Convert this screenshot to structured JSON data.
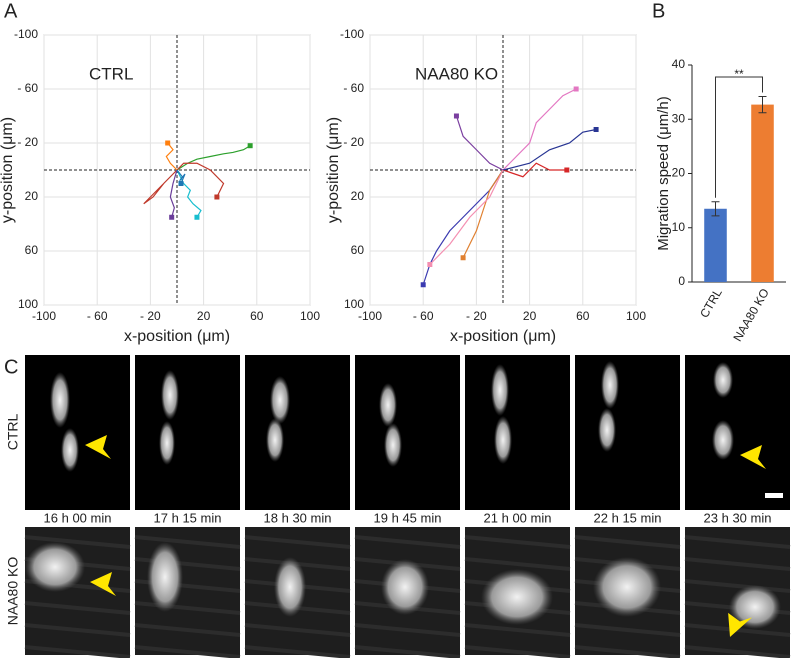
{
  "panel_labels": [
    "A",
    "B",
    "C"
  ],
  "chart_data": [
    {
      "type": "line",
      "annotation": "CTRL",
      "xlabel": "x-position (μm)",
      "ylabel": "y-position (μm)",
      "xlim": [
        -100,
        100
      ],
      "ylim": [
        -100,
        100
      ],
      "y_inverted": true,
      "grid": true,
      "crosshair": [
        0,
        0
      ],
      "xticks": [
        -100,
        {
          "value": -60,
          "label": "- 60"
        },
        {
          "value": -20,
          "label": "- 20"
        },
        20,
        60,
        100
      ],
      "yticks": [
        -100,
        {
          "value": -60,
          "label": "- 60"
        },
        {
          "value": -20,
          "label": "- 20"
        },
        20,
        60,
        100
      ],
      "series": [
        {
          "color": "#2ca02c",
          "x": [
            0,
            8,
            15,
            25,
            35,
            42,
            50,
            55
          ],
          "values": [
            0,
            -5,
            -8,
            -10,
            -12,
            -13,
            -15,
            -18
          ]
        },
        {
          "color": "#c0392b",
          "x": [
            0,
            -10,
            -18,
            -25,
            -15,
            -5,
            5,
            15,
            25,
            35,
            30
          ],
          "values": [
            0,
            10,
            20,
            25,
            15,
            5,
            -5,
            -5,
            0,
            10,
            20
          ]
        },
        {
          "color": "#17becf",
          "x": [
            0,
            5,
            10,
            8,
            12,
            18,
            15
          ],
          "values": [
            0,
            10,
            15,
            20,
            25,
            30,
            35
          ]
        },
        {
          "color": "#6a3d9a",
          "x": [
            0,
            -3,
            -5,
            -2,
            -4
          ],
          "values": [
            0,
            10,
            20,
            28,
            35
          ]
        },
        {
          "color": "#ff7f0e",
          "x": [
            0,
            -5,
            -8,
            -3,
            -7
          ],
          "values": [
            0,
            -5,
            -10,
            -15,
            -20
          ]
        },
        {
          "color": "#1f77b4",
          "x": [
            0,
            4,
            2,
            6,
            3
          ],
          "values": [
            0,
            5,
            8,
            3,
            10
          ]
        }
      ]
    },
    {
      "type": "line",
      "annotation": "NAA80 KO",
      "xlabel": "x-position (μm)",
      "ylabel": "y-position (μm)",
      "xlim": [
        -100,
        100
      ],
      "ylim": [
        -100,
        100
      ],
      "y_inverted": true,
      "grid": true,
      "crosshair": [
        0,
        0
      ],
      "xticks": [
        -100,
        {
          "value": -60,
          "label": "- 60"
        },
        {
          "value": -20,
          "label": "- 20"
        },
        20,
        60,
        100
      ],
      "yticks": [
        -100,
        {
          "value": -60,
          "label": "- 60"
        },
        {
          "value": -20,
          "label": "- 20"
        },
        20,
        60,
        100
      ],
      "series": [
        {
          "color": "#3a3ab0",
          "x": [
            0,
            -10,
            -20,
            -30,
            -40,
            -50,
            -55,
            -60
          ],
          "values": [
            0,
            15,
            25,
            35,
            45,
            60,
            70,
            85
          ]
        },
        {
          "color": "#e377c2",
          "x": [
            0,
            10,
            20,
            25,
            35,
            45,
            55
          ],
          "values": [
            0,
            -10,
            -20,
            -35,
            -45,
            -55,
            -60
          ]
        },
        {
          "color": "#d62728",
          "x": [
            0,
            15,
            25,
            35,
            48
          ],
          "values": [
            0,
            5,
            -5,
            0,
            0
          ]
        },
        {
          "color": "#e08030",
          "x": [
            0,
            -10,
            -15,
            -20,
            -25,
            -30
          ],
          "values": [
            0,
            15,
            30,
            45,
            55,
            65
          ]
        },
        {
          "color": "#283593",
          "x": [
            0,
            20,
            35,
            50,
            60,
            70
          ],
          "values": [
            0,
            -5,
            -15,
            -20,
            -28,
            -30
          ]
        },
        {
          "color": "#7b3fa0",
          "x": [
            0,
            -10,
            -20,
            -30,
            -35
          ],
          "values": [
            0,
            -5,
            -15,
            -25,
            -40
          ]
        },
        {
          "color": "#f48fb1",
          "x": [
            0,
            -10,
            -25,
            -40,
            -55
          ],
          "values": [
            0,
            20,
            35,
            55,
            70
          ]
        }
      ]
    },
    {
      "type": "bar",
      "ylabel": "Migration speed (μm/h)",
      "categories": [
        "CTRL",
        "NAA80 KO"
      ],
      "values": [
        13.5,
        32.7
      ],
      "errors": [
        1.3,
        1.5
      ],
      "colors": [
        "#4472c4",
        "#ed7d31"
      ],
      "ylim": [
        0,
        40
      ],
      "yticks": [
        0,
        10,
        20,
        30,
        40
      ],
      "annotation": "**"
    }
  ],
  "panel_c": {
    "rows": [
      "CTRL",
      "NAA80 KO"
    ],
    "times": [
      "16 h 00 min",
      "17 h 15 min",
      "18 h 30 min",
      "19 h 45 min",
      "21 h 00 min",
      "22 h 15 min",
      "23 h 30 min"
    ]
  }
}
